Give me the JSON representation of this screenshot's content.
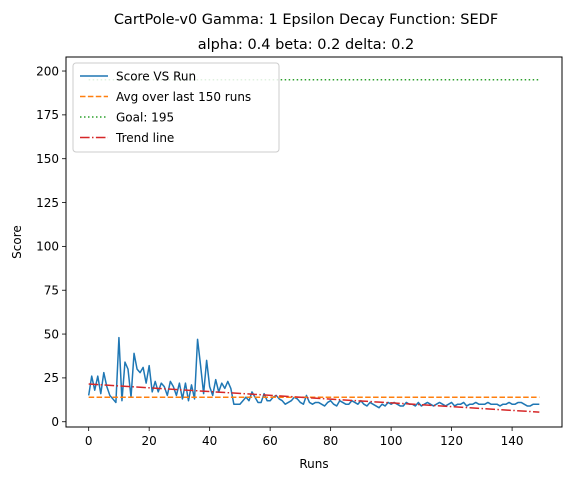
{
  "chart_data": {
    "type": "line",
    "title_line1": "CartPole-v0 Gamma: 1 Epsilon Decay Function: SEDF",
    "title_line2": "alpha: 0.4  beta: 0.2  delta: 0.2",
    "xlabel": "Runs",
    "ylabel": "Score",
    "xlim": [
      -7.5,
      156.5
    ],
    "ylim": [
      -3,
      208
    ],
    "xticks": [
      0,
      20,
      40,
      60,
      80,
      100,
      120,
      140
    ],
    "yticks": [
      0,
      25,
      50,
      75,
      100,
      125,
      150,
      175,
      200
    ],
    "grid": false,
    "legend_position": "top-left",
    "series": [
      {
        "name": "Score VS Run",
        "color": "#1f77b4",
        "style": "solid",
        "x_start": 0,
        "values": [
          15,
          26,
          18,
          26,
          16,
          28,
          20,
          15,
          13,
          11,
          48,
          12,
          34,
          30,
          14,
          39,
          30,
          28,
          31,
          22,
          32,
          17,
          23,
          17,
          22,
          20,
          15,
          23,
          20,
          15,
          22,
          13,
          22,
          12,
          21,
          13,
          47,
          32,
          16,
          35,
          20,
          15,
          24,
          17,
          22,
          19,
          23,
          19,
          10,
          10,
          10,
          12,
          14,
          12,
          17,
          14,
          11,
          11,
          16,
          12,
          12,
          14,
          15,
          13,
          12,
          10,
          11,
          12,
          14,
          13,
          11,
          10,
          15,
          11,
          10,
          11,
          11,
          10,
          9,
          11,
          12,
          10,
          9,
          12,
          11,
          10,
          10,
          12,
          11,
          10,
          12,
          10,
          9,
          11,
          10,
          9,
          8,
          10,
          9,
          11,
          10,
          11,
          10,
          9,
          9,
          11,
          10,
          10,
          9,
          11,
          9,
          10,
          11,
          10,
          9,
          10,
          11,
          10,
          9,
          10,
          11,
          9,
          10,
          10,
          11,
          9,
          10,
          10,
          11,
          10,
          10,
          10,
          11,
          10,
          10,
          10,
          9,
          10,
          10,
          11,
          10,
          10,
          11,
          11,
          10,
          9,
          9,
          10,
          10,
          10
        ]
      },
      {
        "name": "Avg over last 150 runs",
        "color": "#ff7f0e",
        "style": "dashed",
        "x": [
          0,
          149
        ],
        "y": [
          14,
          14
        ]
      },
      {
        "name": "Goal: 195",
        "color": "#2ca02c",
        "style": "dotted",
        "x": [
          0,
          149
        ],
        "y": [
          195,
          195
        ]
      },
      {
        "name": "Trend line",
        "color": "#d62728",
        "style": "dashdot",
        "x": [
          0,
          149
        ],
        "y": [
          21.5,
          5.5
        ]
      }
    ]
  }
}
